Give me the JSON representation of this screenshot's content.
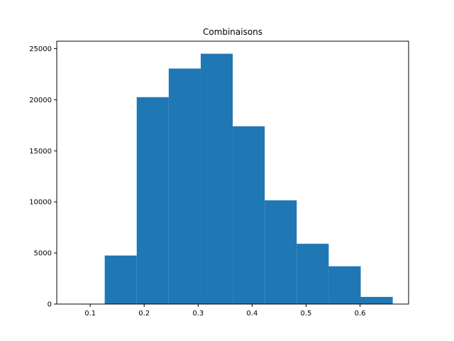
{
  "chart_data": {
    "type": "bar",
    "subtype": "histogram",
    "title": "Combinaisons",
    "xlabel": "",
    "ylabel": "",
    "bin_edges": [
      0.0676,
      0.1269,
      0.1862,
      0.2455,
      0.3048,
      0.3641,
      0.4234,
      0.4827,
      0.542,
      0.6013,
      0.6606
    ],
    "values": [
      0,
      4750,
      20250,
      23050,
      24500,
      17400,
      10150,
      5900,
      3700,
      700
    ],
    "xlim": [
      0.038,
      0.69
    ],
    "ylim": [
      0,
      25725
    ],
    "xticks": [
      0.1,
      0.2,
      0.3,
      0.4,
      0.5,
      0.6
    ],
    "xtick_labels": [
      "0.1",
      "0.2",
      "0.3",
      "0.4",
      "0.5",
      "0.6"
    ],
    "yticks": [
      0,
      5000,
      10000,
      15000,
      20000,
      25000
    ],
    "ytick_labels": [
      "0",
      "5000",
      "10000",
      "15000",
      "20000",
      "25000"
    ],
    "grid": false,
    "legend": "none",
    "color": "#1f77b4"
  }
}
